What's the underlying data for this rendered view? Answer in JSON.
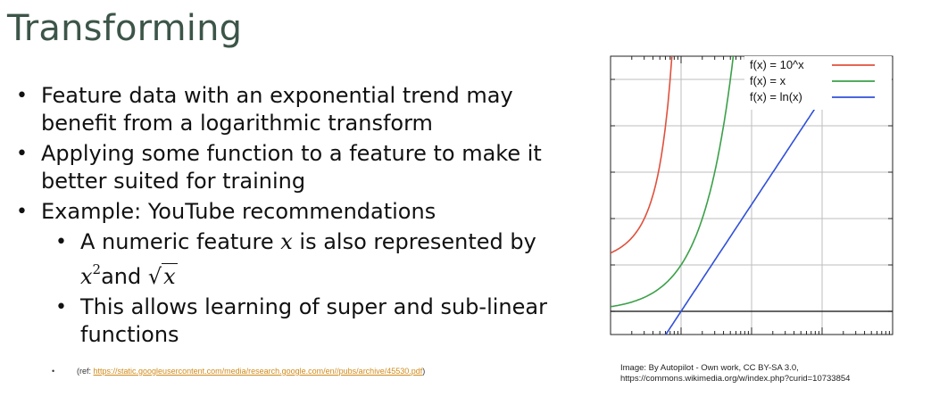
{
  "slide": {
    "title": "Transforming",
    "bullets": [
      "Feature data with an exponential trend may",
      "benefit from a logarithmic transform",
      "Applying some function to a feature to make it",
      "better suited for training",
      "Example: YouTube recommendations"
    ],
    "sub_bullets": {
      "first_prefix": "A numeric feature ",
      "first_var": "x",
      "first_suffix": " is also represented by",
      "x_base": "x",
      "x_exp": "2",
      "and_text": "and ",
      "sqrt_symbol": "√",
      "sqrt_arg": "x",
      "second_line1": "This allows learning of super and sub-linear",
      "second_line2": "functions"
    },
    "reference": {
      "prefix": "(ref: ",
      "url": "https://static.googleusercontent.com/media/research.google.com/en//pubs/archive/45530.pdf",
      "suffix": ")"
    },
    "credit": {
      "line1": "Image: By Autopilot - Own work, CC BY-SA 3.0,",
      "line2": "https://commons.wikimedia.org/w/index.php?curid=10733854"
    }
  },
  "chart_data": {
    "type": "line",
    "title": "",
    "xlabel": "",
    "ylabel": "",
    "x_scale": "log",
    "xlim": [
      0.1,
      1000
    ],
    "ylim": [
      -0.5,
      5.5
    ],
    "grid": true,
    "legend_placement": "top-right",
    "series": [
      {
        "name": "f(x) = 10^x",
        "color": "#e0503c",
        "x": [
          0.1,
          0.2,
          0.3,
          0.4,
          0.5,
          0.6,
          0.7,
          0.75
        ],
        "y": [
          1.26,
          1.58,
          2.0,
          2.51,
          3.16,
          3.98,
          5.01,
          5.62
        ]
      },
      {
        "name": "f(x) = x",
        "color": "#3aa048",
        "x": [
          0.1,
          0.3,
          0.5,
          1,
          2,
          3,
          4,
          5,
          5.5
        ],
        "y": [
          0.1,
          0.3,
          0.5,
          1,
          2,
          3,
          4,
          5,
          5.5
        ]
      },
      {
        "name": "f(x) = ln(x)",
        "color": "#3050d8",
        "x": [
          0.5,
          1,
          10,
          100,
          1000
        ],
        "y": [
          -0.69,
          0,
          2.3,
          4.61,
          6.91
        ]
      }
    ]
  }
}
